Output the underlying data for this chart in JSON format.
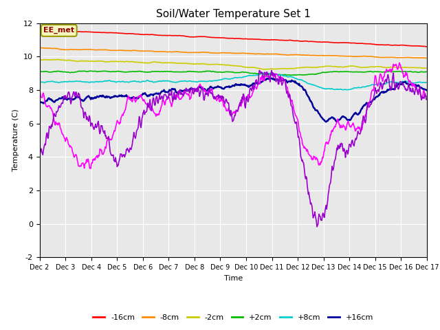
{
  "title": "Soil/Water Temperature Set 1",
  "xlabel": "Time",
  "ylabel": "Temperature (C)",
  "ylim": [
    -2,
    12
  ],
  "yticks": [
    -2,
    0,
    2,
    4,
    6,
    8,
    10,
    12
  ],
  "annotation_text": "EE_met",
  "background_color": "#ffffff",
  "plot_bg_color": "#e8e8e8",
  "series": {
    "-16cm": {
      "color": "#ff0000",
      "linewidth": 1.2
    },
    "-8cm": {
      "color": "#ff8c00",
      "linewidth": 1.2
    },
    "-2cm": {
      "color": "#cccc00",
      "linewidth": 1.2
    },
    "+2cm": {
      "color": "#00bb00",
      "linewidth": 1.2
    },
    "+8cm": {
      "color": "#00cccc",
      "linewidth": 1.2
    },
    "+16cm": {
      "color": "#000099",
      "linewidth": 1.8
    },
    "+32cm": {
      "color": "#ff00ff",
      "linewidth": 1.2
    },
    "+64cm": {
      "color": "#9900cc",
      "linewidth": 1.2
    }
  },
  "xtick_labels": [
    "Dec 2",
    "Dec 3",
    "Dec 4",
    "Dec 5",
    "Dec 6",
    "Dec 7",
    "Dec 8",
    "Dec 9",
    "Dec 10",
    "Dec 11",
    "Dec 12",
    "Dec 13",
    "Dec 14",
    "Dec 15",
    "Dec 16",
    "Dec 17"
  ],
  "n_points": 720,
  "n_days": 15
}
